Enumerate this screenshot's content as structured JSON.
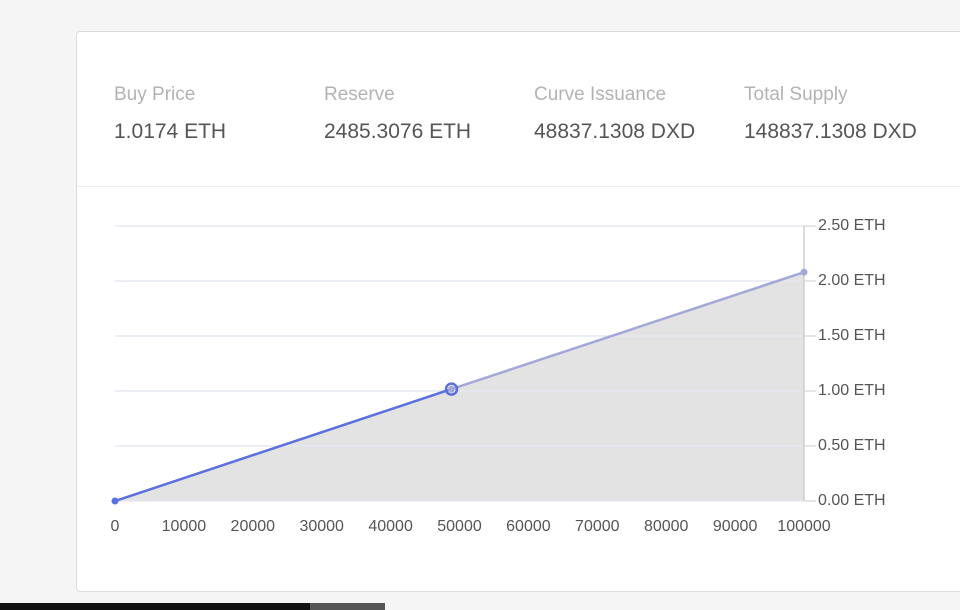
{
  "stats": [
    {
      "label": "Buy Price",
      "value": "1.0174 ETH"
    },
    {
      "label": "Reserve",
      "value": "2485.3076 ETH"
    },
    {
      "label": "Curve Issuance",
      "value": "48837.1308 DXD"
    },
    {
      "label": "Total Supply",
      "value": "148837.1308 DXD"
    }
  ],
  "chart_data": {
    "type": "line",
    "series": [
      {
        "color": "#5b6fe0",
        "x": [
          0,
          48837.1308
        ],
        "values": [
          0,
          1.0174
        ]
      },
      {
        "color": "#a3a8d8",
        "x": [
          48837.1308,
          100000
        ],
        "values": [
          1.0174,
          2.08
        ]
      }
    ],
    "area_color": "#e3e3e3",
    "xlim": [
      0,
      100000
    ],
    "xticks": [
      0,
      10000,
      20000,
      30000,
      40000,
      50000,
      60000,
      70000,
      80000,
      90000,
      100000
    ],
    "ylim": [
      0,
      2.5
    ],
    "yticks": [
      {
        "value": 0,
        "label": "0.00 ETH"
      },
      {
        "value": 0.5,
        "label": "0.50 ETH"
      },
      {
        "value": 1,
        "label": "1.00 ETH"
      },
      {
        "value": 1.5,
        "label": "1.50 ETH"
      },
      {
        "value": 2,
        "label": "2.00 ETH"
      },
      {
        "value": 2.5,
        "label": "2.50 ETH"
      }
    ],
    "grid": true
  }
}
